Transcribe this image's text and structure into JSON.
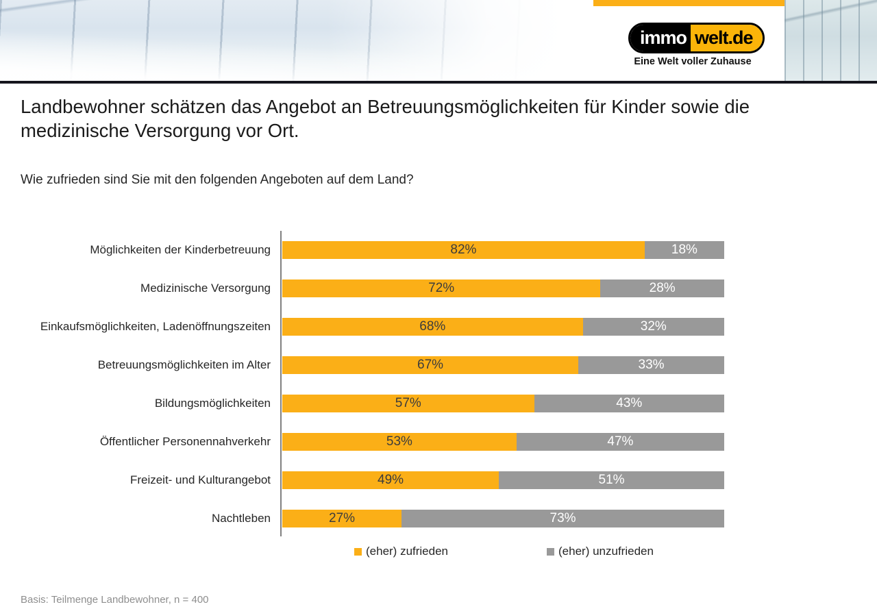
{
  "brand": {
    "logo_left": "immo",
    "logo_right": "welt.de",
    "tagline": "Eine Welt voller Zuhause",
    "accent_color": "#FBAF17",
    "logo_yellow": "#FBB409",
    "logo_black": "#000000"
  },
  "title": "Landbewohner schätzen das Angebot an Betreuungsmöglichkeiten für Kinder sowie die medizinische Versorgung vor Ort.",
  "question": "Wie zufrieden sind Sie mit den folgenden Angeboten auf dem Land?",
  "chart_data": {
    "type": "bar",
    "orientation": "horizontal",
    "stacked": true,
    "grid": false,
    "xlim": [
      0,
      100
    ],
    "value_suffix": "%",
    "legend_position": "bottom",
    "categories": [
      "Möglichkeiten der Kinderbetreuung",
      "Medizinische Versorgung",
      "Einkaufsmöglichkeiten, Ladenöffnungszeiten",
      "Betreuungsmöglichkeiten im Alter",
      "Bildungsmöglichkeiten",
      "Öffentlicher Personennahverkehr",
      "Freizeit- und Kulturangebot",
      "Nachtleben"
    ],
    "series": [
      {
        "name": "(eher) zufrieden",
        "color": "#FBAF17",
        "label_color": "#3c3c3c",
        "values": [
          82,
          72,
          68,
          67,
          57,
          53,
          49,
          27
        ]
      },
      {
        "name": "(eher) unzufrieden",
        "color": "#999999",
        "label_color": "#ffffff",
        "values": [
          18,
          28,
          32,
          33,
          43,
          47,
          51,
          73
        ]
      }
    ],
    "axis_color": "#808080"
  },
  "footer": {
    "basis": "Basis: Teilmenge Landbewohner, n = 400"
  }
}
